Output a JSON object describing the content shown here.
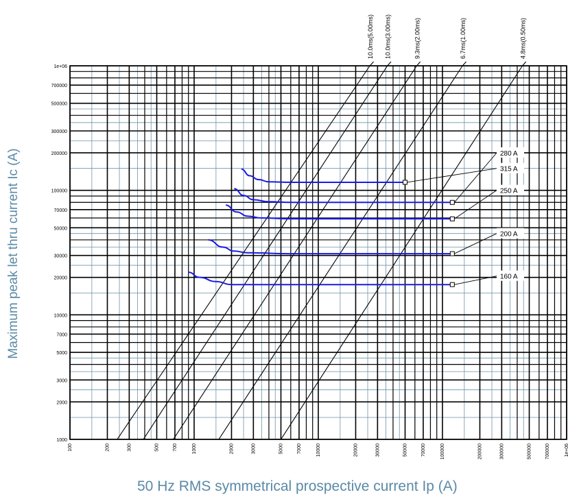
{
  "chart_data": {
    "type": "line",
    "xlabel": "50 Hz RMS symmetrical prospective current Ip (A)",
    "ylabel": "Maximum peak let thru current Ic (A)",
    "x_scale": "log",
    "y_scale": "log",
    "xlim": [
      100,
      1000000
    ],
    "ylim": [
      1000,
      1000000
    ],
    "x_ticks": [
      "100",
      "200",
      "300",
      "500",
      "700",
      "1000",
      "2000",
      "3000",
      "5000",
      "7000",
      "10000",
      "20000",
      "30000",
      "50000",
      "70000",
      "100000",
      "200000",
      "300000",
      "500000",
      "700000",
      "1e+06"
    ],
    "y_ticks": [
      "1e+06",
      "700000",
      "500000",
      "300000",
      "200000",
      "100000",
      "70000",
      "50000",
      "30000",
      "20000",
      "10000",
      "7000",
      "5000",
      "3000",
      "2000",
      "1000"
    ],
    "grid": true,
    "reference_lines": [
      {
        "name": "10.0ms(5.00ms)",
        "x_at_ymin": 240,
        "x_at_ymax": 26000
      },
      {
        "name": "10.0ms(3.00ms)",
        "x_at_ymin": 390,
        "x_at_ymax": 36000
      },
      {
        "name": "9.3ms(2.00ms)",
        "x_at_ymin": 680,
        "x_at_ymax": 62000
      },
      {
        "name": "6.7ms(1.00ms)",
        "x_at_ymin": 1580,
        "x_at_ymax": 145000
      },
      {
        "name": "4.8ms(0.50ms)",
        "x_at_ymin": 5000,
        "x_at_ymax": 440000
      }
    ],
    "series": [
      {
        "name": "315 A",
        "color": "#1a1ae6",
        "x": [
          2400,
          2800,
          3300,
          4000,
          6000,
          10000,
          50000
        ],
        "y": [
          148000,
          131000,
          122000,
          117000,
          116000,
          116000,
          116000
        ],
        "marker_x": 50000,
        "label_anchor": 150000
      },
      {
        "name": "280 A",
        "color": "#1a1ae6",
        "x": [
          2100,
          2500,
          3000,
          4000,
          6000,
          10000,
          120000
        ],
        "y": [
          103000,
          91000,
          84000,
          81000,
          80000,
          80000,
          80000
        ],
        "marker_x": 120000,
        "label_anchor": 200000
      },
      {
        "name": "250 A",
        "color": "#1a1ae6",
        "x": [
          1800,
          2200,
          2700,
          3500,
          6000,
          10000,
          120000
        ],
        "y": [
          76000,
          67000,
          62000,
          60000,
          59000,
          59000,
          59000
        ],
        "marker_x": 120000,
        "label_anchor": 100000
      },
      {
        "name": "200 A",
        "color": "#1a1ae6",
        "x": [
          1300,
          1700,
          2100,
          2700,
          6000,
          10000,
          120000
        ],
        "y": [
          40000,
          35000,
          32500,
          31500,
          31000,
          31000,
          31000
        ],
        "marker_x": 120000,
        "label_anchor": 45000
      },
      {
        "name": "160 A",
        "color": "#1a1ae6",
        "x": [
          900,
          1100,
          1500,
          2000,
          4000,
          10000,
          120000
        ],
        "y": [
          22000,
          20000,
          18500,
          17500,
          17500,
          17500,
          17500
        ],
        "marker_x": 120000,
        "label_anchor": 20500
      }
    ]
  }
}
